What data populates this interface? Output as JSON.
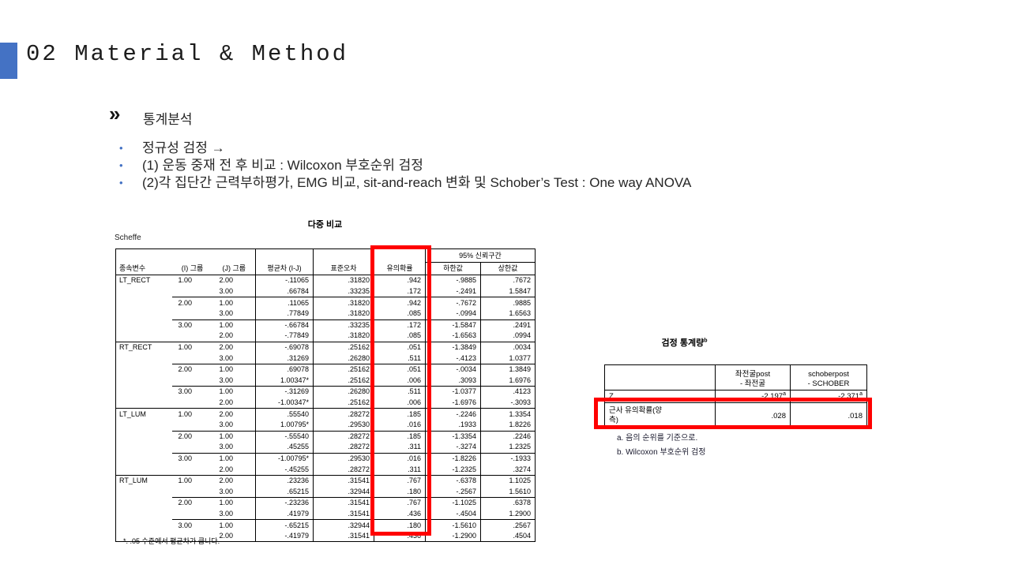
{
  "slide": {
    "title": "02 Material & Method",
    "accent_color": "#4472C4",
    "highlight_color": "#FF0000"
  },
  "section": {
    "marker": "»",
    "heading": "통계분석",
    "bullet_glyph": "•",
    "bullets": [
      "정규성 검정 →",
      "(1) 운동 중재 전 후 비교 : Wilcoxon 부호순위 검정",
      "(2)각 집단간 근력부하평가, EMG 비교, sit-and-reach 변화 및  Schober’s Test : One way ANOVA"
    ]
  },
  "multiple_comparison_table": {
    "title": "다중 비교",
    "subtitle": "Scheffe",
    "ci_header": "95% 신뢰구간",
    "columns": [
      "종속변수",
      "(I) 그룹",
      "(J) 그룹",
      "평균차 (I-J)",
      "표준오차",
      "유의확률",
      "하한값",
      "상한값"
    ],
    "sections": [
      {
        "variable": "LT_RECT",
        "rows": [
          [
            "1.00",
            "2.00",
            "-.11065",
            ".31820",
            ".942",
            "-.9885",
            ".7672"
          ],
          [
            "",
            "3.00",
            ".66784",
            ".33235",
            ".172",
            "-.2491",
            "1.5847"
          ],
          [
            "2.00",
            "1.00",
            ".11065",
            ".31820",
            ".942",
            "-.7672",
            ".9885"
          ],
          [
            "",
            "3.00",
            ".77849",
            ".31820",
            ".085",
            "-.0994",
            "1.6563"
          ],
          [
            "3.00",
            "1.00",
            "-.66784",
            ".33235",
            ".172",
            "-1.5847",
            ".2491"
          ],
          [
            "",
            "2.00",
            "-.77849",
            ".31820",
            ".085",
            "-1.6563",
            ".0994"
          ]
        ]
      },
      {
        "variable": "RT_RECT",
        "rows": [
          [
            "1.00",
            "2.00",
            "-.69078",
            ".25162",
            ".051",
            "-1.3849",
            ".0034"
          ],
          [
            "",
            "3.00",
            ".31269",
            ".26280",
            ".511",
            "-.4123",
            "1.0377"
          ],
          [
            "2.00",
            "1.00",
            ".69078",
            ".25162",
            ".051",
            "-.0034",
            "1.3849"
          ],
          [
            "",
            "3.00",
            "1.00347*",
            ".25162",
            ".006",
            ".3093",
            "1.6976"
          ],
          [
            "3.00",
            "1.00",
            "-.31269",
            ".26280",
            ".511",
            "-1.0377",
            ".4123"
          ],
          [
            "",
            "2.00",
            "-1.00347*",
            ".25162",
            ".006",
            "-1.6976",
            "-.3093"
          ]
        ]
      },
      {
        "variable": "LT_LUM",
        "rows": [
          [
            "1.00",
            "2.00",
            ".55540",
            ".28272",
            ".185",
            "-.2246",
            "1.3354"
          ],
          [
            "",
            "3.00",
            "1.00795*",
            ".29530",
            ".016",
            ".1933",
            "1.8226"
          ],
          [
            "2.00",
            "1.00",
            "-.55540",
            ".28272",
            ".185",
            "-1.3354",
            ".2246"
          ],
          [
            "",
            "3.00",
            ".45255",
            ".28272",
            ".311",
            "-.3274",
            "1.2325"
          ],
          [
            "3.00",
            "1.00",
            "-1.00795*",
            ".29530",
            ".016",
            "-1.8226",
            "-.1933"
          ],
          [
            "",
            "2.00",
            "-.45255",
            ".28272",
            ".311",
            "-1.2325",
            ".3274"
          ]
        ]
      },
      {
        "variable": "RT_LUM",
        "rows": [
          [
            "1.00",
            "2.00",
            ".23236",
            ".31541",
            ".767",
            "-.6378",
            "1.1025"
          ],
          [
            "",
            "3.00",
            ".65215",
            ".32944",
            ".180",
            "-.2567",
            "1.5610"
          ],
          [
            "2.00",
            "1.00",
            "-.23236",
            ".31541",
            ".767",
            "-1.1025",
            ".6378"
          ],
          [
            "",
            "3.00",
            ".41979",
            ".31541",
            ".436",
            "-.4504",
            "1.2900"
          ],
          [
            "3.00",
            "1.00",
            "-.65215",
            ".32944",
            ".180",
            "-1.5610",
            ".2567"
          ],
          [
            "",
            "2.00",
            "-.41979",
            ".31541",
            ".436",
            "-1.2900",
            ".4504"
          ]
        ]
      }
    ],
    "footnote": "*. .05 수준에서 평균차가 큽니다."
  },
  "test_statistics_table": {
    "title": "검정 통계량",
    "title_superscript": "b",
    "columns": [
      {
        "line1": "좌전굴post",
        "line2": "- 좌전굴"
      },
      {
        "line1": "schoberpost",
        "line2": "- SCHOBER"
      }
    ],
    "rows": [
      {
        "label": "Z",
        "values": [
          "-2.197",
          "-2.371"
        ],
        "value_superscript": "a"
      },
      {
        "label": "근사 유의확률(양\n측)",
        "values": [
          ".028",
          ".018"
        ]
      }
    ],
    "footnotes": [
      "a. 음의 순위를 기준으로.",
      "b. Wilcoxon 부호순위 검정"
    ]
  }
}
